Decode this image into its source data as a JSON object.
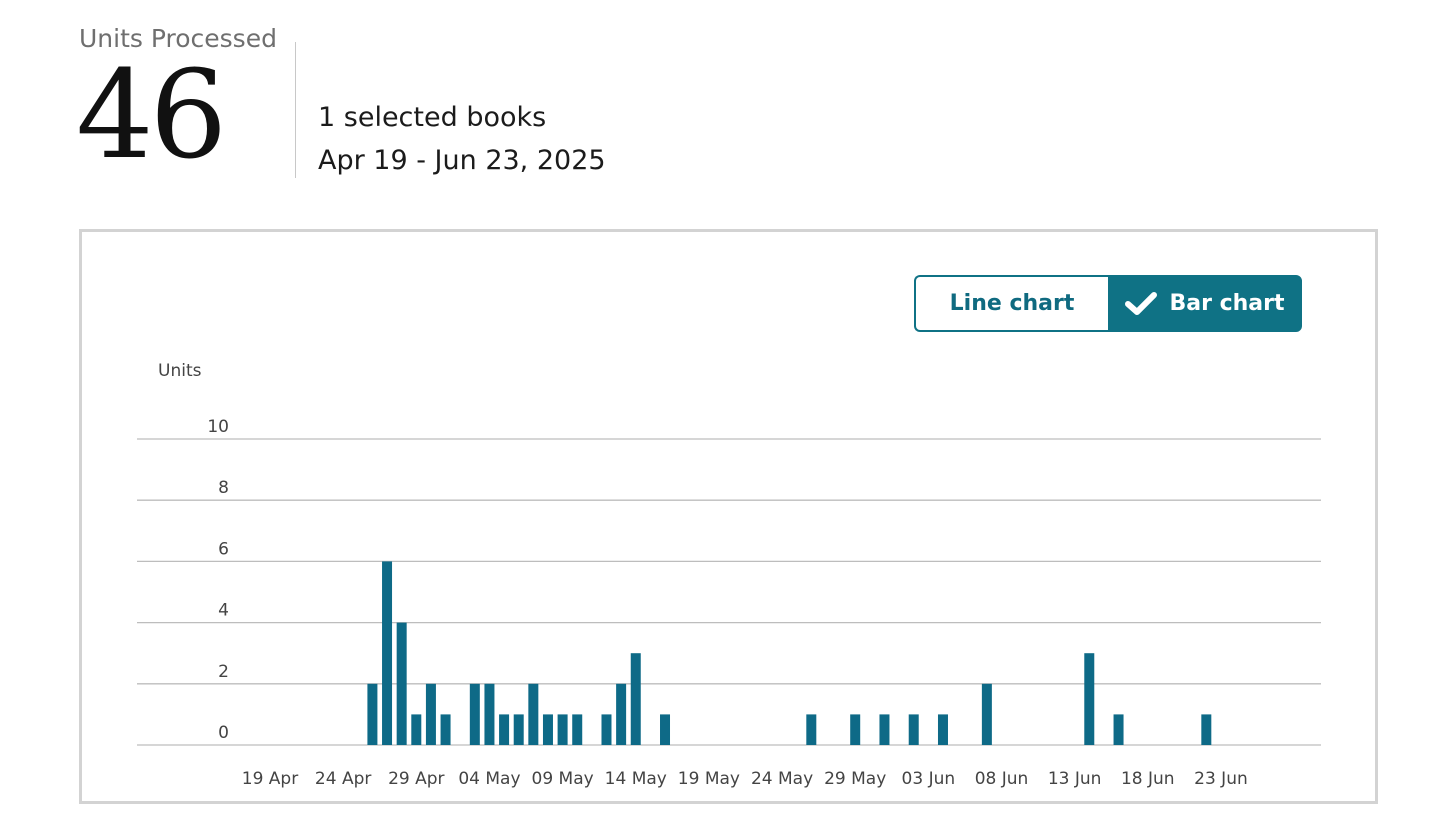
{
  "metric": {
    "label": "Units Processed",
    "value": "46",
    "books": "1 selected books",
    "date_range": "Apr 19 - Jun 23, 2025"
  },
  "toggle": {
    "line_label": "Line chart",
    "bar_label": "Bar chart"
  },
  "colors": {
    "bar": "#0e6a87",
    "accent": "#0f7285",
    "grid": "#bdbdbd"
  },
  "chart_data": {
    "type": "bar",
    "title": "",
    "ylabel": "Units",
    "xlabel": "",
    "ylim": [
      0,
      10
    ],
    "yticks": [
      0,
      2,
      4,
      6,
      8,
      10
    ],
    "x_start": "2025-04-19",
    "x_end": "2025-06-23",
    "xtick_labels": [
      "19 Apr",
      "24 Apr",
      "29 Apr",
      "04 May",
      "09 May",
      "14 May",
      "19 May",
      "24 May",
      "29 May",
      "03 Jun",
      "08 Jun",
      "13 Jun",
      "18 Jun",
      "23 Jun"
    ],
    "points": [
      {
        "date": "2025-04-26",
        "value": 2
      },
      {
        "date": "2025-04-27",
        "value": 6
      },
      {
        "date": "2025-04-28",
        "value": 4
      },
      {
        "date": "2025-04-29",
        "value": 1
      },
      {
        "date": "2025-04-30",
        "value": 2
      },
      {
        "date": "2025-05-01",
        "value": 1
      },
      {
        "date": "2025-05-03",
        "value": 2
      },
      {
        "date": "2025-05-04",
        "value": 2
      },
      {
        "date": "2025-05-05",
        "value": 1
      },
      {
        "date": "2025-05-06",
        "value": 1
      },
      {
        "date": "2025-05-07",
        "value": 2
      },
      {
        "date": "2025-05-08",
        "value": 1
      },
      {
        "date": "2025-05-09",
        "value": 1
      },
      {
        "date": "2025-05-10",
        "value": 1
      },
      {
        "date": "2025-05-12",
        "value": 1
      },
      {
        "date": "2025-05-13",
        "value": 2
      },
      {
        "date": "2025-05-14",
        "value": 3
      },
      {
        "date": "2025-05-16",
        "value": 1
      },
      {
        "date": "2025-05-26",
        "value": 1
      },
      {
        "date": "2025-05-29",
        "value": 1
      },
      {
        "date": "2025-05-31",
        "value": 1
      },
      {
        "date": "2025-06-02",
        "value": 1
      },
      {
        "date": "2025-06-04",
        "value": 1
      },
      {
        "date": "2025-06-07",
        "value": 2
      },
      {
        "date": "2025-06-14",
        "value": 3
      },
      {
        "date": "2025-06-16",
        "value": 1
      },
      {
        "date": "2025-06-22",
        "value": 1
      }
    ]
  }
}
